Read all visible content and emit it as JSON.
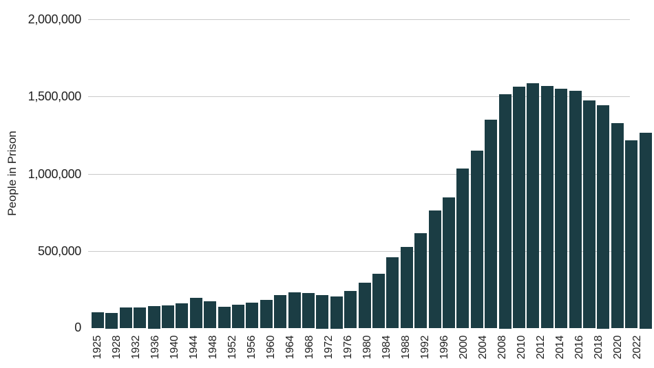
{
  "chart_data": {
    "type": "bar",
    "title": "",
    "xlabel": "",
    "ylabel": "People in Prison",
    "ylim": [
      0,
      2000000
    ],
    "grid": true,
    "bar_color": "#1b3d44",
    "gridline_color": "#c9c9c9",
    "text_color": "#1f1f1f",
    "background_color": "#ffffff",
    "y_ticks": [
      {
        "label": "2,000,000",
        "value": 2000000
      },
      {
        "label": "1,500,000",
        "value": 1500000
      },
      {
        "label": "1,000,000",
        "value": 1000000
      },
      {
        "label": "500,000",
        "value": 500000
      },
      {
        "label": "0",
        "value": 0
      }
    ],
    "x_tick_labels": [
      "1925",
      "1928",
      "1932",
      "1936",
      "1940",
      "1944",
      "1948",
      "1952",
      "1956",
      "1960",
      "1964",
      "1968",
      "1972",
      "1976",
      "1980",
      "1984",
      "1988",
      "1992",
      "1996",
      "2000",
      "2004",
      "2008",
      "2010",
      "2012",
      "2014",
      "2016",
      "2018",
      "2020",
      "2022"
    ],
    "values": [
      103000,
      100000,
      136000,
      134000,
      147000,
      148000,
      162000,
      197000,
      174000,
      141000,
      152000,
      168000,
      186000,
      214000,
      232000,
      230000,
      218000,
      209000,
      241000,
      294000,
      354000,
      459000,
      527000,
      615000,
      764000,
      849000,
      1033000,
      1149000,
      1350000,
      1515000,
      1565000,
      1587000,
      1570000,
      1550000,
      1536000,
      1476000,
      1446000,
      1330000,
      1216000,
      1268000
    ]
  }
}
